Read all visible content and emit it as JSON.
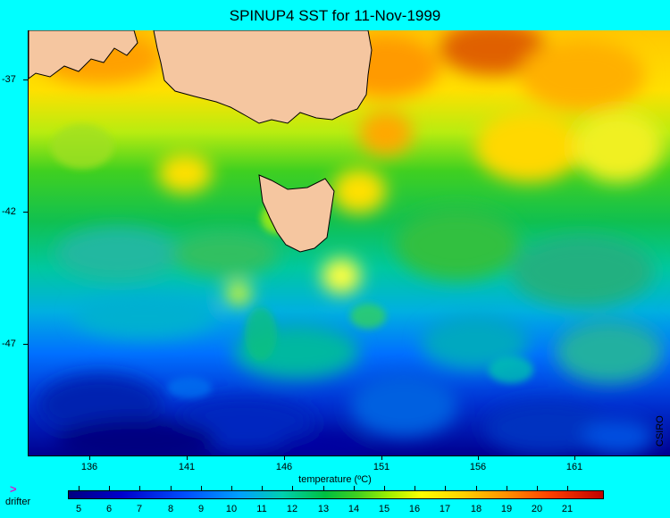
{
  "title": "SPINUP4 SST for 11-Nov-1999",
  "x_axis": {
    "ticks": [
      "136",
      "141",
      "146",
      "151",
      "156",
      "161"
    ],
    "label": "temperature (ºC)"
  },
  "y_axis": {
    "ticks": [
      "-37",
      "-42",
      "-47"
    ]
  },
  "credit": "CSIRO",
  "legend": {
    "marker": ">",
    "label": "drifter"
  },
  "colorbar": {
    "ticks": [
      "5",
      "6",
      "7",
      "8",
      "9",
      "10",
      "11",
      "12",
      "13",
      "14",
      "15",
      "16",
      "17",
      "18",
      "19",
      "20",
      "21"
    ],
    "min_color": "#000080",
    "max_color": "#c00000"
  },
  "colors": {
    "background": "#00ffff",
    "land": "#f5c6a0"
  }
}
